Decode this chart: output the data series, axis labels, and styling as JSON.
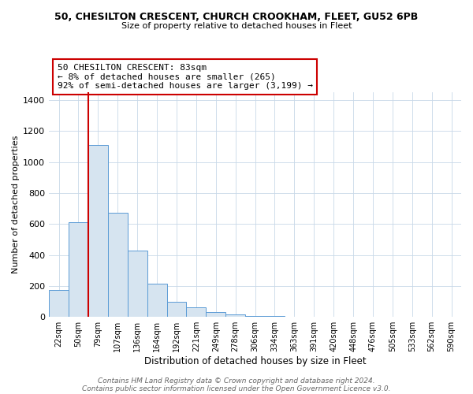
{
  "title_line1": "50, CHESILTON CRESCENT, CHURCH CROOKHAM, FLEET, GU52 6PB",
  "title_line2": "Size of property relative to detached houses in Fleet",
  "xlabel": "Distribution of detached houses by size in Fleet",
  "ylabel": "Number of detached properties",
  "categories": [
    "22sqm",
    "50sqm",
    "79sqm",
    "107sqm",
    "136sqm",
    "164sqm",
    "192sqm",
    "221sqm",
    "249sqm",
    "278sqm",
    "306sqm",
    "334sqm",
    "363sqm",
    "391sqm",
    "420sqm",
    "448sqm",
    "476sqm",
    "505sqm",
    "533sqm",
    "562sqm",
    "590sqm"
  ],
  "values": [
    175,
    610,
    1110,
    670,
    430,
    215,
    100,
    60,
    30,
    15,
    8,
    5,
    3,
    2,
    1,
    1,
    0,
    0,
    0,
    0,
    0
  ],
  "highlight_index": 2,
  "bar_fill_color": "#d6e4f0",
  "bar_edge_color": "#5b9bd5",
  "red_line_color": "#cc0000",
  "annotation_text": "50 CHESILTON CRESCENT: 83sqm\n← 8% of detached houses are smaller (265)\n92% of semi-detached houses are larger (3,199) →",
  "annotation_box_color": "#ffffff",
  "annotation_border_color": "#cc0000",
  "footer_line1": "Contains HM Land Registry data © Crown copyright and database right 2024.",
  "footer_line2": "Contains public sector information licensed under the Open Government Licence v3.0.",
  "ylim": [
    0,
    1450
  ],
  "yticks": [
    0,
    200,
    400,
    600,
    800,
    1000,
    1200,
    1400
  ],
  "background_color": "#ffffff",
  "grid_color": "#c8d8e8"
}
